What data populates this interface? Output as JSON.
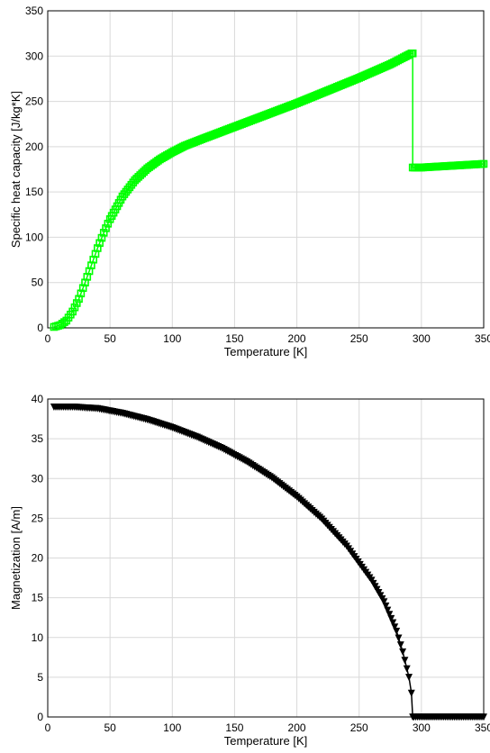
{
  "chart_data": [
    {
      "type": "line",
      "xlabel": "Temperature [K]",
      "ylabel": "Specific heat capacity [J/kg*K]",
      "xlim": [
        0,
        350
      ],
      "ylim": [
        0,
        350
      ],
      "xticks": [
        0,
        50,
        100,
        150,
        200,
        250,
        300,
        350
      ],
      "yticks": [
        0,
        50,
        100,
        150,
        200,
        250,
        300,
        350
      ],
      "grid": true,
      "color": "#00ff00",
      "marker": "square",
      "series": [
        {
          "x": [
            5,
            10,
            15,
            20,
            25,
            30,
            35,
            40,
            45,
            50,
            60,
            70,
            80,
            90,
            100,
            110,
            125,
            150,
            175,
            200,
            225,
            250,
            275,
            292,
            293,
            293,
            300,
            325,
            350
          ],
          "y": [
            1,
            3,
            8,
            18,
            32,
            50,
            69,
            88,
            105,
            120,
            145,
            163,
            176,
            186,
            194,
            201,
            209,
            222,
            235,
            248,
            262,
            276,
            291,
            303,
            303,
            177,
            177,
            179,
            181
          ]
        }
      ]
    },
    {
      "type": "line",
      "xlabel": "Temperature [K]",
      "ylabel": "Magnetization [A/m]",
      "xlim": [
        0,
        350
      ],
      "ylim": [
        0,
        40
      ],
      "xticks": [
        0,
        50,
        100,
        150,
        200,
        250,
        300,
        350
      ],
      "yticks": [
        0,
        5,
        10,
        15,
        20,
        25,
        30,
        35,
        40
      ],
      "grid": true,
      "color": "#000000",
      "marker": "triangle-down",
      "series": [
        {
          "x": [
            5,
            20,
            40,
            60,
            80,
            100,
            120,
            140,
            160,
            180,
            200,
            220,
            240,
            260,
            270,
            280,
            285,
            290,
            292,
            293,
            294,
            300,
            325,
            350
          ],
          "y": [
            39,
            39,
            38.8,
            38.2,
            37.4,
            36.4,
            35.2,
            33.8,
            32.1,
            30.1,
            27.7,
            24.9,
            21.5,
            17.2,
            14.5,
            10.8,
            8.2,
            5,
            3,
            0,
            0,
            0,
            0,
            0
          ]
        }
      ]
    }
  ]
}
